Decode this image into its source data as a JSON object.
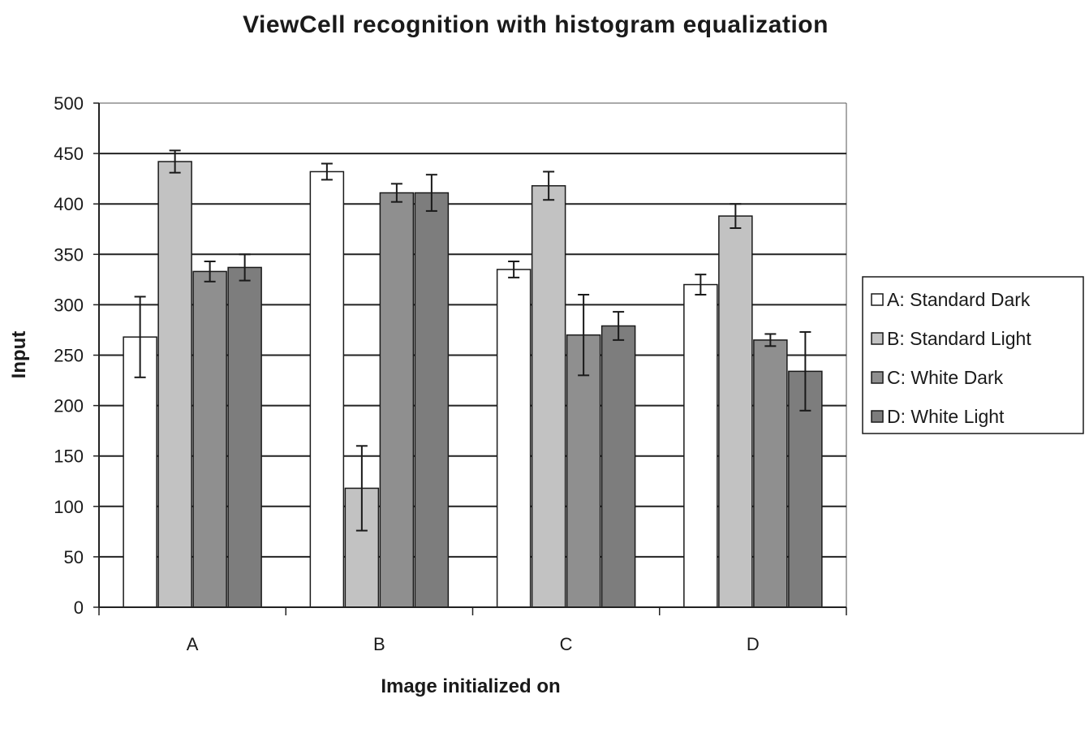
{
  "chart_data": {
    "type": "bar",
    "title": "ViewCell recognition with histogram equalization",
    "xlabel": "Image initialized on",
    "ylabel": "Input",
    "categories": [
      "A",
      "B",
      "C",
      "D"
    ],
    "ylim": [
      0,
      500
    ],
    "yticks": [
      0,
      50,
      100,
      150,
      200,
      250,
      300,
      350,
      400,
      450,
      500
    ],
    "grid": true,
    "legend_position": "right",
    "series": [
      {
        "name": "A: Standard Dark",
        "color": "#ffffff",
        "values": [
          268,
          432,
          335,
          320
        ],
        "errors": [
          40,
          8,
          8,
          10
        ]
      },
      {
        "name": "B: Standard Light",
        "color": "#c2c2c2",
        "values": [
          442,
          118,
          418,
          388
        ],
        "errors": [
          11,
          42,
          14,
          12
        ]
      },
      {
        "name": "C: White Dark",
        "color": "#8f8f8f",
        "values": [
          333,
          411,
          270,
          265
        ],
        "errors": [
          10,
          9,
          40,
          6
        ]
      },
      {
        "name": "D: White Light",
        "color": "#7d7d7d",
        "values": [
          337,
          411,
          279,
          234
        ],
        "errors": [
          13,
          18,
          14,
          39
        ]
      }
    ]
  }
}
